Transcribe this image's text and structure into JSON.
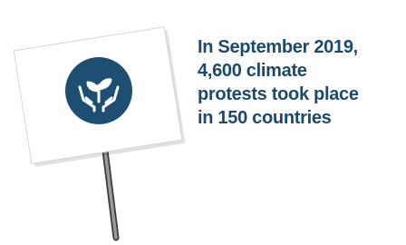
{
  "caption": {
    "lines": [
      "In September 2019,",
      "4,600 climate",
      "protests took place",
      "in 150 countries"
    ]
  }
}
